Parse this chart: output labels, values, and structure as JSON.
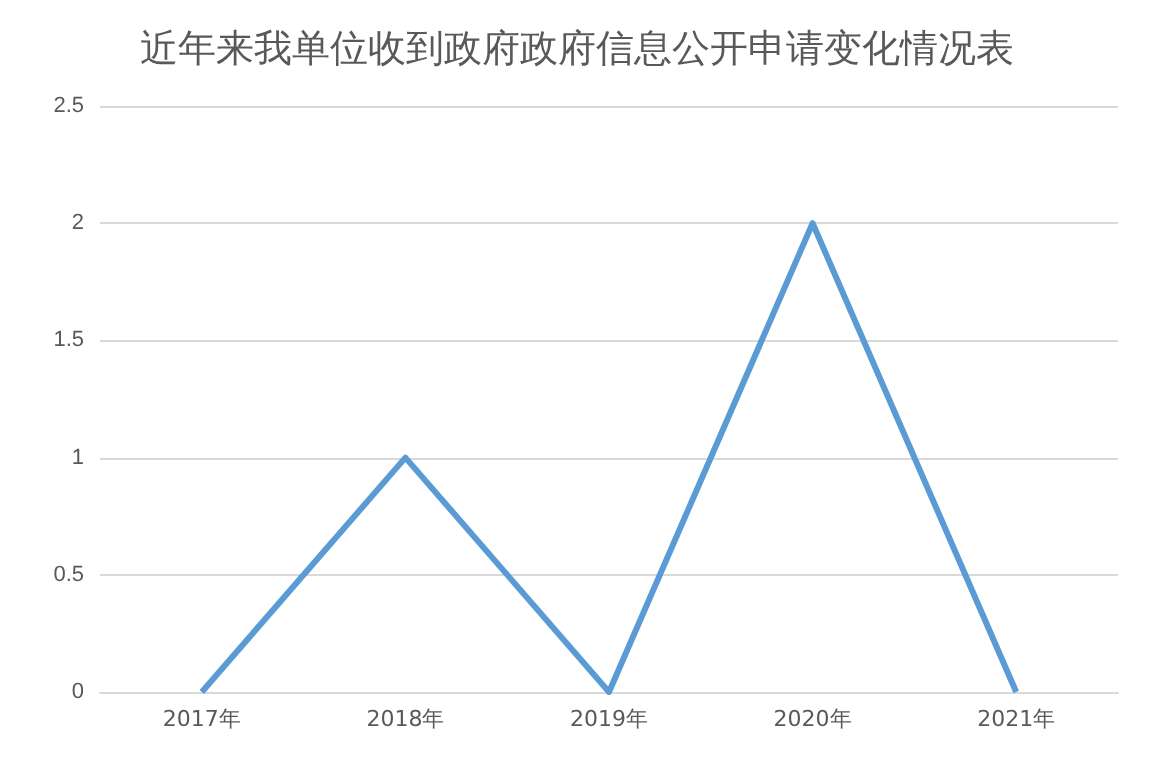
{
  "chart_data": {
    "type": "line",
    "title": "近年来我单位收到政府政府信息公开申请变化情况表",
    "categories": [
      "2017年",
      "2018年",
      "2019年",
      "2020年",
      "2021年"
    ],
    "series": [
      {
        "color": "#5b9bd5",
        "values": [
          0,
          1,
          0,
          2,
          0
        ]
      }
    ],
    "ylim": [
      0,
      2.5
    ],
    "yticks": [
      0,
      0.5,
      1,
      1.5,
      2,
      2.5
    ],
    "grid": "y",
    "marker": "none",
    "line_style": "solid"
  }
}
